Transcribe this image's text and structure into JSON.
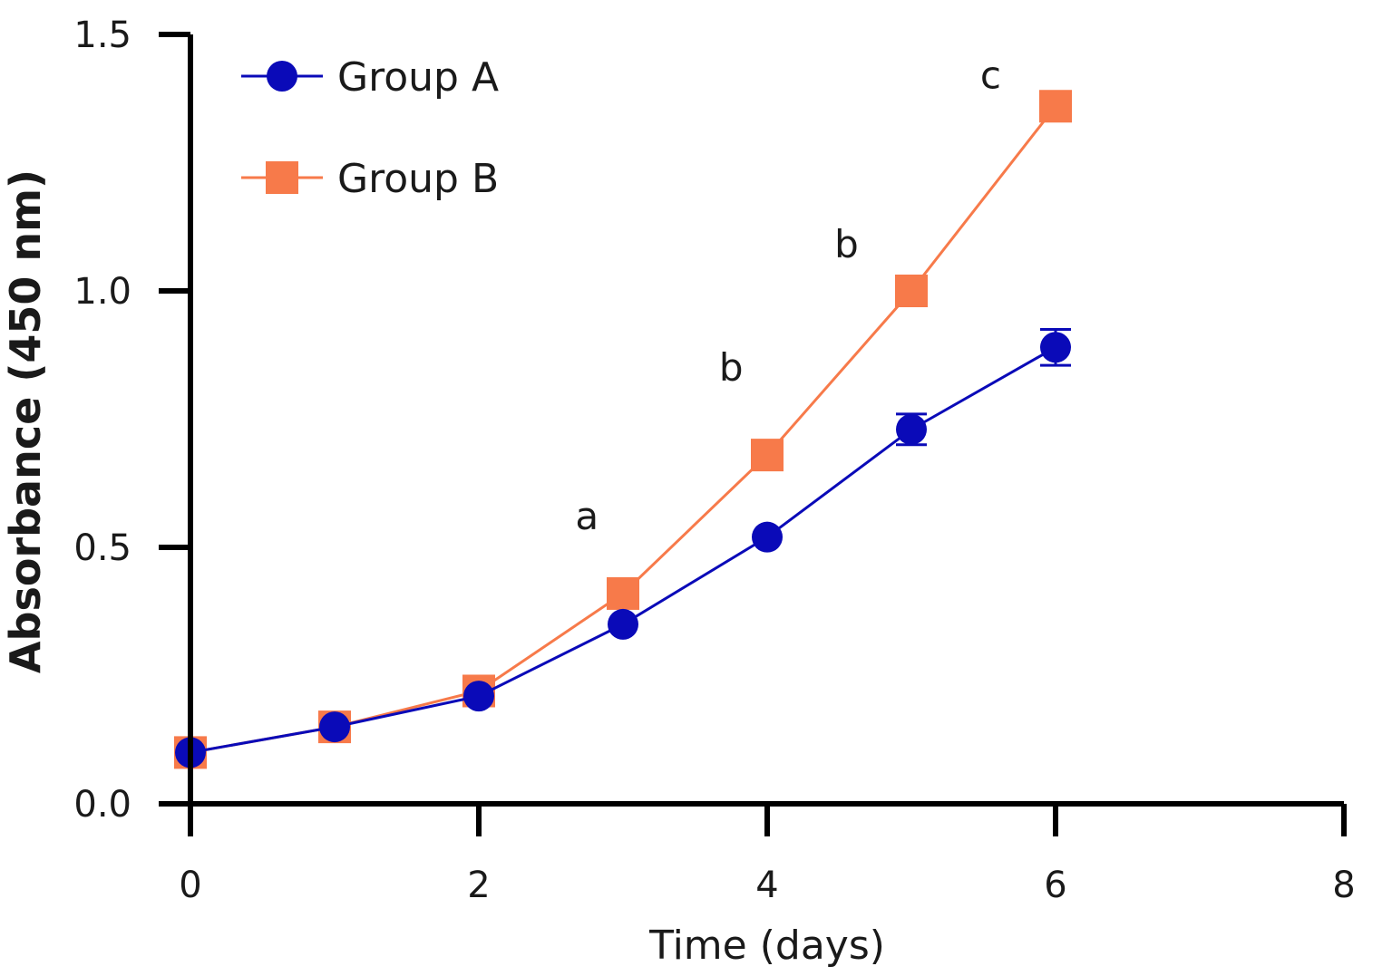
{
  "chart_data": {
    "type": "line",
    "title": "",
    "xlabel": "Time (days)",
    "ylabel": "Absorbance (450 nm)",
    "xlim": [
      0,
      8
    ],
    "ylim": [
      0,
      1.5
    ],
    "x_ticks": [
      0,
      2,
      4,
      6,
      8
    ],
    "x_tick_labels": [
      "0",
      "2",
      "4",
      "6",
      "8"
    ],
    "y_ticks": [
      0,
      0.5,
      1.0,
      1.5
    ],
    "y_tick_labels": [
      "0.0",
      "0.5",
      "1.0",
      "1.5"
    ],
    "grid": false,
    "legend_position": "top-left",
    "series": [
      {
        "name": "Group A",
        "marker": "circle",
        "color": "#0a0ab8",
        "x": [
          0,
          1,
          2,
          3,
          4,
          5,
          6
        ],
        "y": [
          0.1,
          0.15,
          0.21,
          0.35,
          0.52,
          0.73,
          0.89
        ],
        "error": [
          0,
          0,
          0,
          0,
          0,
          0.03,
          0.035
        ]
      },
      {
        "name": "Group B",
        "marker": "square",
        "color": "#f77a4a",
        "x": [
          0,
          1,
          2,
          3,
          4,
          5,
          6
        ],
        "y": [
          0.1,
          0.15,
          0.22,
          0.41,
          0.68,
          1.0,
          1.36
        ],
        "error": [
          0,
          0,
          0,
          0,
          0,
          0,
          0
        ]
      }
    ],
    "annotations": [
      {
        "text": "a",
        "x": 2.75,
        "y": 0.56
      },
      {
        "text": "b",
        "x": 3.75,
        "y": 0.85
      },
      {
        "text": "b",
        "x": 4.55,
        "y": 1.09
      },
      {
        "text": "c",
        "x": 5.55,
        "y": 1.42
      }
    ]
  }
}
